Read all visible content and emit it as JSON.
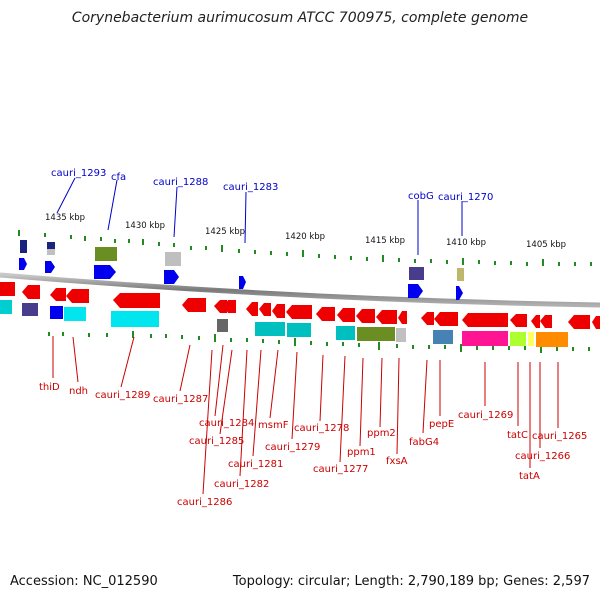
{
  "header": {
    "title": "Corynebacterium aurimucosum ATCC 700975, complete genome"
  },
  "footer": {
    "accession": "Accession: NC_012590",
    "topology": "Topology: circular; Length: 2,790,189 bp; Genes: 2,597"
  },
  "colors": {
    "backbone": "#888888",
    "forward_label": "#0000cc",
    "reverse_label": "#cc0000",
    "tick": "#228b22"
  },
  "ticks": [
    "1435 kbp",
    "1430 kbp",
    "1425 kbp",
    "1420 kbp",
    "1415 kbp",
    "1410 kbp",
    "1405 kbp"
  ],
  "forward_labels": [
    "cauri_1293",
    "cfa",
    "cauri_1288",
    "cauri_1283",
    "cobG",
    "cauri_1270"
  ],
  "reverse_labels": [
    "thiD",
    "ndh",
    "cauri_1289",
    "cauri_1287",
    "cauri_1284",
    "cauri_1285",
    "cauri_1286",
    "msmF",
    "cauri_1281",
    "cauri_1282",
    "cauri_1279",
    "cauri_1278",
    "cauri_1277",
    "ppm1",
    "ppm2",
    "fxsA",
    "fabG4",
    "pepE",
    "cauri_1269",
    "tatC",
    "cauri_1266",
    "tatA",
    "cauri_1265"
  ]
}
